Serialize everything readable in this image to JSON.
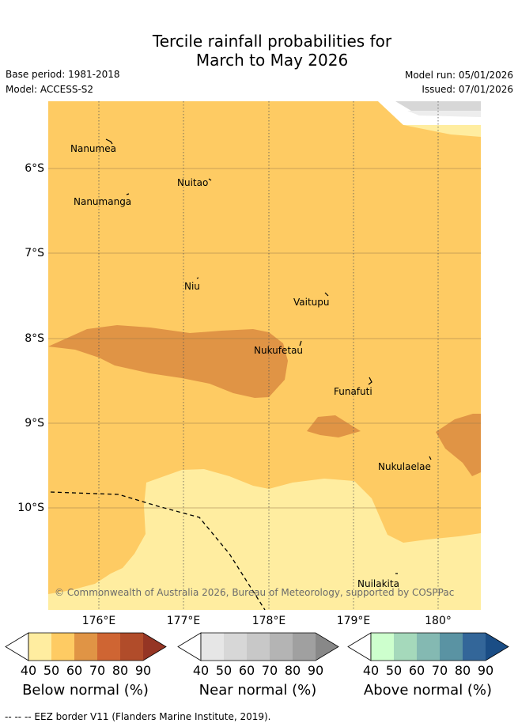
{
  "title_line1": "Tercile rainfall probabilities for",
  "title_line2": "March to May 2026",
  "base_period": "Base period: 1981-2018",
  "model": "Model: ACCESS-S2",
  "model_run": "Model run: 05/01/2026",
  "issued": "Issued: 07/01/2026",
  "lat_labels": [
    "6°S",
    "7°S",
    "8°S",
    "9°S",
    "10°S"
  ],
  "lon_labels": [
    "176°E",
    "177°E",
    "178°E",
    "179°E",
    "180°"
  ],
  "places": [
    "Nanumea",
    "Nuitao",
    "Nanumanga",
    "Niu",
    "Vaitupu",
    "Nukufetau",
    "Funafuti",
    "Nukulaelae",
    "Nuilakita"
  ],
  "copyright": "© Commonwealth of Australia 2026, Bureau of Meteorology, supported by COSPPac",
  "colorbars": {
    "below": {
      "label": "Below normal (%)",
      "ticks": [
        "40",
        "50",
        "60",
        "70",
        "80",
        "90"
      ],
      "colors": [
        "#ffeda0",
        "#fecb63",
        "#e09445",
        "#cf6533",
        "#b14c2a",
        "#953524"
      ]
    },
    "near": {
      "label": "Near normal (%)",
      "ticks": [
        "40",
        "50",
        "60",
        "70",
        "80",
        "90"
      ],
      "colors": [
        "#e6e6e6",
        "#d7d7d7",
        "#c8c8c8",
        "#b4b4b4",
        "#a0a0a0",
        "#888888"
      ]
    },
    "above": {
      "label": "Above normal (%)",
      "ticks": [
        "40",
        "50",
        "60",
        "70",
        "80",
        "90"
      ],
      "colors": [
        "#cdffcd",
        "#a5d9bb",
        "#84b9b2",
        "#5a93a3",
        "#336699",
        "#1a4d85"
      ]
    }
  },
  "footer": "--  --  -- EEZ border V11 (Flanders Marine Institute, 2019)."
}
